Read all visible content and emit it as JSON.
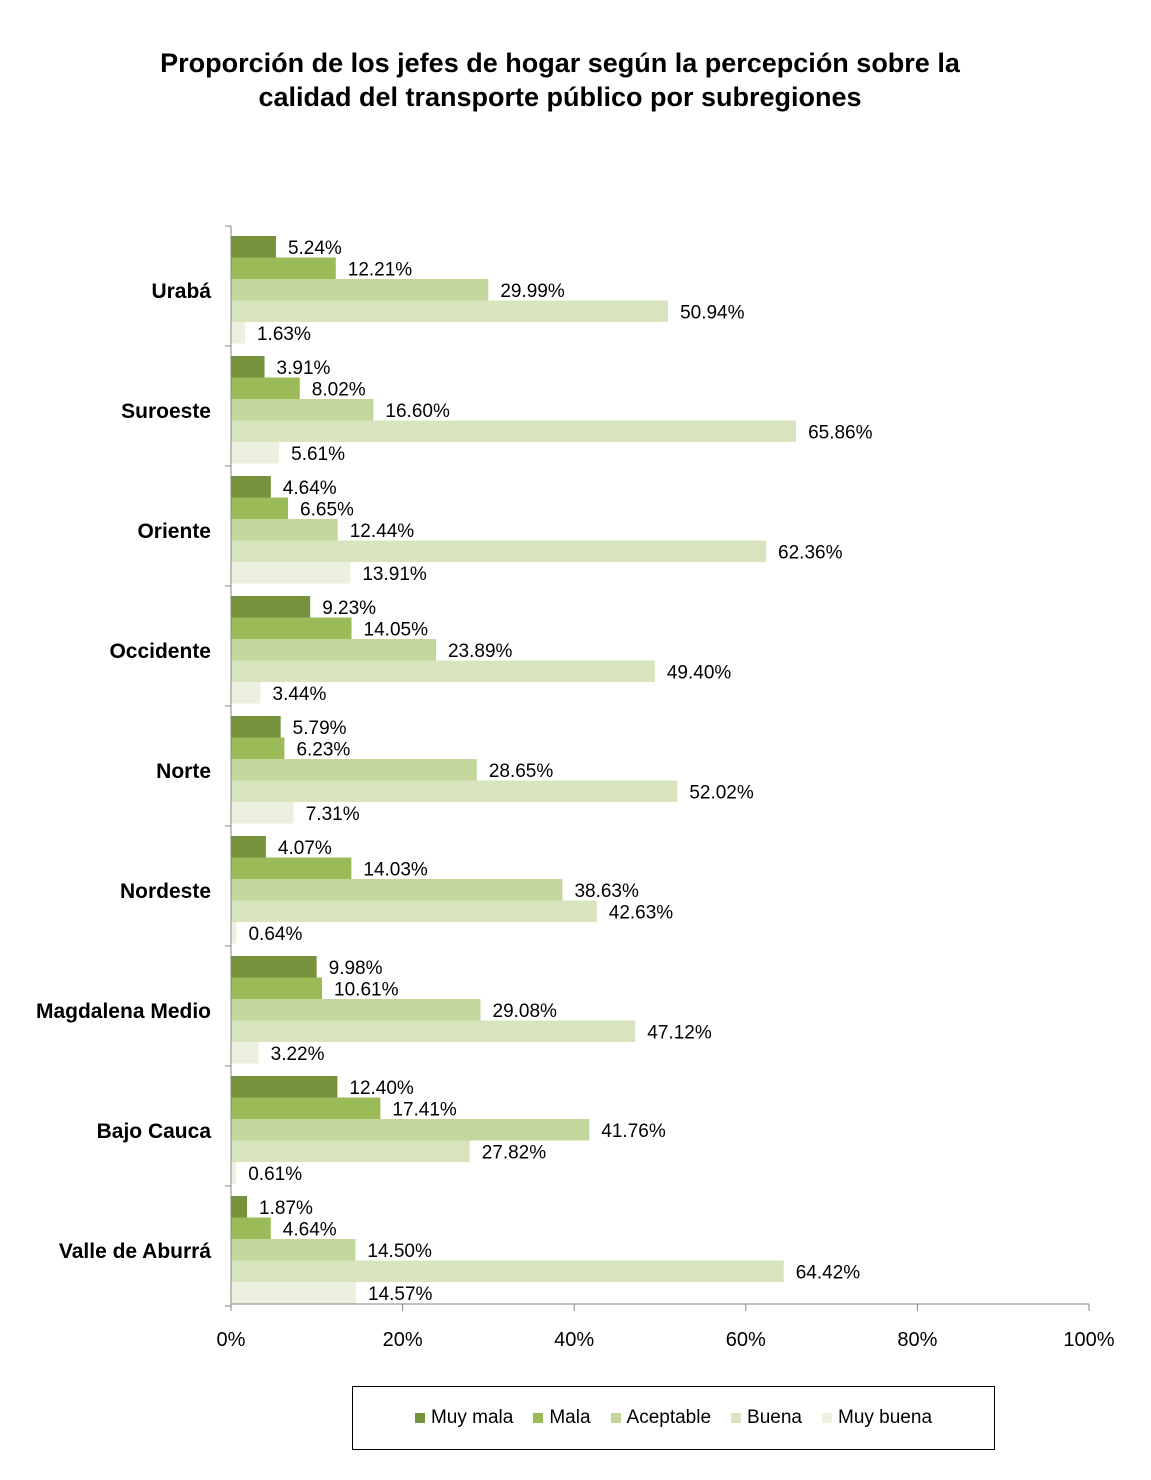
{
  "chart_data": {
    "type": "bar",
    "orientation": "horizontal",
    "title_line1": "Proporción de los jefes de hogar  según la percepción sobre la",
    "title_line2": "calidad del transporte público por subregiones",
    "categories": [
      "Urabá",
      "Suroeste",
      "Oriente",
      "Occidente",
      "Norte",
      "Nordeste",
      "Magdalena Medio",
      "Bajo Cauca",
      "Valle de Aburrá"
    ],
    "series": [
      {
        "name": "Muy mala",
        "color": "#76923c",
        "values": [
          5.24,
          3.91,
          4.64,
          9.23,
          5.79,
          4.07,
          9.98,
          12.4,
          1.87
        ],
        "labels": [
          "5.24%",
          "3.91%",
          "4.64%",
          "9.23%",
          "5.79%",
          "4.07%",
          "9.98%",
          "12.40%",
          "1.87%"
        ]
      },
      {
        "name": "Mala",
        "color": "#9bbb59",
        "values": [
          12.21,
          8.02,
          6.65,
          14.05,
          6.23,
          14.03,
          10.61,
          17.41,
          4.64
        ],
        "labels": [
          "12.21%",
          "8.02%",
          "6.65%",
          "14.05%",
          "6.23%",
          "14.03%",
          "10.61%",
          "17.41%",
          "4.64%"
        ]
      },
      {
        "name": "Aceptable",
        "color": "#c3d69b",
        "values": [
          29.99,
          16.6,
          12.44,
          23.89,
          28.65,
          38.63,
          29.08,
          41.76,
          14.5
        ],
        "labels": [
          "29.99%",
          "16.60%",
          "12.44%",
          "23.89%",
          "28.65%",
          "38.63%",
          "29.08%",
          "41.76%",
          "14.50%"
        ]
      },
      {
        "name": "Buena",
        "color": "#d7e4bd",
        "values": [
          50.94,
          65.86,
          62.36,
          49.4,
          52.02,
          42.63,
          47.12,
          27.82,
          64.42
        ],
        "labels": [
          "50.94%",
          "65.86%",
          "62.36%",
          "49.40%",
          "52.02%",
          "42.63%",
          "47.12%",
          "27.82%",
          "64.42%"
        ]
      },
      {
        "name": "Muy buena",
        "color": "#ebf1de",
        "values": [
          1.63,
          5.61,
          13.91,
          3.44,
          7.31,
          0.64,
          3.22,
          0.61,
          14.57
        ],
        "labels": [
          "1.63%",
          "5.61%",
          "13.91%",
          "3.44%",
          "7.31%",
          "0.64%",
          "3.22%",
          "0.61%",
          "14.57%"
        ]
      }
    ],
    "x_ticks": [
      "0%",
      "20%",
      "40%",
      "60%",
      "80%",
      "100%"
    ],
    "xlim": [
      0,
      100
    ],
    "grid": false,
    "legend_position": "bottom"
  }
}
